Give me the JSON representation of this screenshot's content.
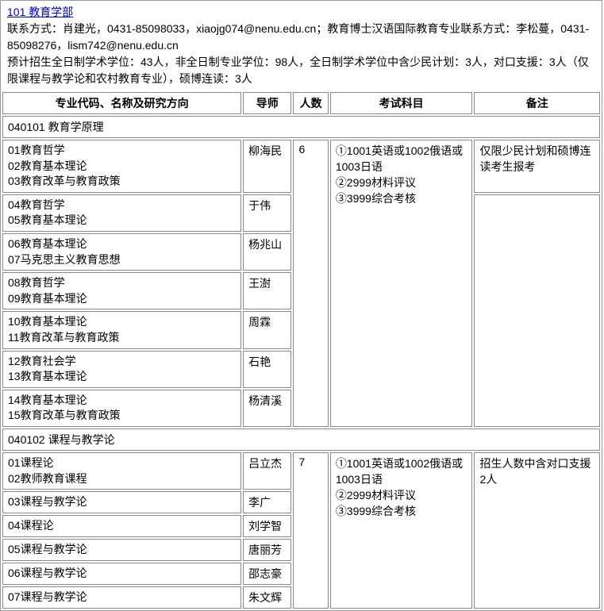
{
  "department": {
    "code_name": "101 教育学部",
    "contact_line1_prefix": "联系方式：",
    "contact_line1": "肖建光，0431-85098033，xiaojg074@nenu.edu.cn；教育博士汉语国际教育专业联系方式：李松蔓，0431-85098276，lism742@nenu.edu.cn",
    "enrollment_line": "预计招生全日制学术学位：43人，非全日制专业学位：98人，全日制学术学位中含少民计划：3人，对口支援：3人（仅限课程与教学论和农村教育专业），硕博连读：3人"
  },
  "table": {
    "headers": {
      "direction": "专业代码、名称及研究方向",
      "tutor": "导师",
      "num": "人数",
      "exam": "考试科目",
      "note": "备注"
    },
    "sections": [
      {
        "title": "040101 教育学原理",
        "exam_lines": [
          "①1001英语或1002俄语或1003日语",
          "②2999材料评议",
          "③3999综合考核"
        ],
        "rows": [
          {
            "directions": [
              "01教育哲学",
              "02教育基本理论",
              "03教育改革与教育政策"
            ],
            "tutor": "柳海民",
            "num": "6",
            "note": "仅限少民计划和硕博连读考生报考",
            "note_rowspan": 1
          },
          {
            "directions": [
              "04教育哲学",
              "05教育基本理论"
            ],
            "tutor": "于伟",
            "note": "",
            "note_rowspan": 6
          },
          {
            "directions": [
              "06教育基本理论",
              "07马克思主义教育思想"
            ],
            "tutor": "杨兆山"
          },
          {
            "directions": [
              "08教育哲学",
              "09教育基本理论"
            ],
            "tutor": "王澍"
          },
          {
            "directions": [
              "10教育基本理论",
              "11教育改革与教育政策"
            ],
            "tutor": "周霖"
          },
          {
            "directions": [
              "12教育社会学",
              "13教育基本理论"
            ],
            "tutor": "石艳"
          },
          {
            "directions": [
              "14教育基本理论",
              "15教育改革与教育政策"
            ],
            "tutor": "杨清溪"
          }
        ]
      },
      {
        "title": "040102 课程与教学论",
        "exam_lines": [
          "①1001英语或1002俄语或1003日语",
          "②2999材料评议",
          "③3999综合考核"
        ],
        "rows": [
          {
            "directions": [
              "01课程论",
              "02教师教育课程"
            ],
            "tutor": "吕立杰",
            "num": "7",
            "note": "招生人数中含对口支援2人",
            "note_rowspan": 7
          },
          {
            "directions": [
              "03课程与教学论"
            ],
            "tutor": "李广"
          },
          {
            "directions": [
              "04课程论"
            ],
            "tutor": "刘学智"
          },
          {
            "directions": [
              "05课程与教学论"
            ],
            "tutor": "唐丽芳"
          },
          {
            "directions": [
              "06课程与教学论"
            ],
            "tutor": "邵志豪"
          },
          {
            "directions": [
              "07课程与教学论"
            ],
            "tutor": "朱文辉"
          }
        ]
      }
    ]
  },
  "style": {
    "link_color": "#0000cc",
    "border_color": "#888888",
    "font_size": 14,
    "col_widths": {
      "direction": 285,
      "tutor": 58,
      "num": 42,
      "exam": 170,
      "note": 150
    }
  }
}
